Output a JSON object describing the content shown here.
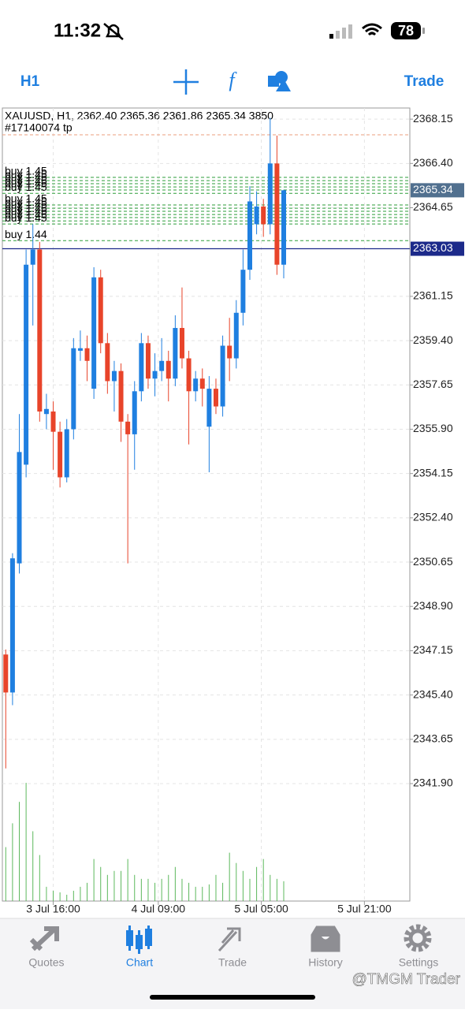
{
  "status": {
    "time": "11:32",
    "battery": "78"
  },
  "toolbar": {
    "timeframe": "H1",
    "trade": "Trade"
  },
  "chart_data": {
    "type": "candlestick",
    "header": "XAUUSD, H1, 2362.40 2365.36 2361.86 2365.34 3850",
    "open": [
      2347.0,
      2345.5,
      2350.6,
      2354.5,
      2362.4,
      2363.0,
      2356.5,
      2356.6,
      2355.8,
      2354.0,
      2355.9,
      2359.0,
      2359.1,
      2357.5,
      2361.9,
      2359.3,
      2357.8,
      2358.2,
      2356.2,
      2355.7,
      2357.4,
      2359.3,
      2357.9,
      2358.2,
      2358.6,
      2357.9,
      2359.9,
      2358.7,
      2357.4,
      2357.9,
      2356.0,
      2357.5,
      2356.8,
      2359.2,
      2358.7,
      2360.5,
      2362.2,
      2364.0,
      2364.7,
      2364.0,
      2366.4,
      2362.4
    ],
    "high": [
      2347.2,
      2351.0,
      2356.5,
      2363.0,
      2364.0,
      2363.3,
      2357.3,
      2357.0,
      2356.2,
      2356.3,
      2359.5,
      2359.8,
      2359.6,
      2362.3,
      2362.2,
      2359.7,
      2358.6,
      2358.5,
      2356.5,
      2357.8,
      2359.7,
      2359.6,
      2358.9,
      2359.5,
      2359.0,
      2360.4,
      2361.5,
      2359.0,
      2358.2,
      2358.3,
      2358.0,
      2357.9,
      2359.6,
      2360.3,
      2361.0,
      2363.0,
      2365.5,
      2365.3,
      2365.0,
      2368.2,
      2367.5,
      2365.36
    ],
    "low": [
      2342.5,
      2345.0,
      2350.2,
      2354.0,
      2360.0,
      2356.2,
      2355.9,
      2354.3,
      2353.6,
      2353.8,
      2355.5,
      2358.6,
      2357.8,
      2357.1,
      2358.9,
      2357.3,
      2356.6,
      2355.4,
      2350.6,
      2354.3,
      2357.0,
      2357.5,
      2357.2,
      2357.8,
      2357.0,
      2357.6,
      2358.3,
      2355.3,
      2357.0,
      2356.8,
      2354.2,
      2356.5,
      2356.4,
      2357.8,
      2358.3,
      2360.0,
      2361.8,
      2363.6,
      2363.5,
      2363.6,
      2362.0,
      2361.86
    ],
    "close": [
      2345.5,
      2350.8,
      2355.0,
      2362.4,
      2363.0,
      2356.6,
      2356.7,
      2355.8,
      2354.0,
      2355.9,
      2359.1,
      2359.1,
      2358.6,
      2361.9,
      2359.3,
      2357.8,
      2358.2,
      2356.2,
      2355.7,
      2357.4,
      2359.3,
      2357.9,
      2358.2,
      2358.6,
      2357.9,
      2359.9,
      2358.7,
      2357.4,
      2357.9,
      2357.5,
      2357.5,
      2356.8,
      2359.2,
      2358.7,
      2360.5,
      2362.2,
      2364.9,
      2364.7,
      2364.0,
      2366.4,
      2362.4,
      2365.34
    ],
    "volumes": [
      10470,
      15090,
      19250,
      22950,
      13550,
      8930,
      2770,
      2000,
      1690,
      1230,
      2000,
      2770,
      3540,
      8160,
      6620,
      5080,
      5850,
      5850,
      8160,
      5080,
      4310,
      4310,
      3540,
      4310,
      5080,
      6620,
      4310,
      3540,
      2770,
      2770,
      3230,
      5080,
      3540,
      9390,
      7390,
      5850,
      4310,
      6620,
      8160,
      5080,
      4310,
      3850
    ],
    "up_color": "#1f7fe0",
    "down_color": "#e8442a",
    "volume_color": "#5cb85c",
    "xlim": [
      -0.5,
      59.6
    ],
    "ylim": [
      2337.26,
      2368.59
    ],
    "xticks": [
      {
        "value": 7,
        "label": "3 Jul 16:00"
      },
      {
        "value": 22.5,
        "label": "4 Jul 09:00"
      },
      {
        "value": 37.7,
        "label": "5 Jul 05:00"
      },
      {
        "value": 52.9,
        "label": "5 Jul 21:00"
      }
    ],
    "yticks": [
      2368.15,
      {
        "value": 2366.4,
        "label": "2366.40"
      },
      2364.65,
      2361.15,
      {
        "value": 2359.4,
        "label": "2359.40"
      },
      2357.65,
      {
        "value": 2355.9,
        "label": "2355.90"
      },
      2354.15,
      {
        "value": 2352.4,
        "label": "2352.40"
      },
      2350.65,
      {
        "value": 2348.9,
        "label": "2348.90"
      },
      2347.15,
      {
        "value": 2345.4,
        "label": "2345.40"
      },
      2343.65,
      {
        "value": 2341.9,
        "label": "2341.90"
      }
    ],
    "grid": true,
    "tp": {
      "label": "#17140074 tp",
      "value": 2367.53,
      "color": "#eb9f7c"
    },
    "orders": [
      {
        "label": "buy 1.45",
        "value": 2365.85
      },
      {
        "label": "buy 1.45",
        "value": 2365.72
      },
      {
        "label": "buy 1.45",
        "value": 2365.6
      },
      {
        "label": "buy 1.45",
        "value": 2365.47
      },
      {
        "label": "buy 1.45",
        "value": 2365.35
      },
      {
        "label": "buy 1.45",
        "value": 2365.22
      },
      {
        "label": "buy 1.45",
        "value": 2364.76
      },
      {
        "label": "buy 1.45",
        "value": 2364.63
      },
      {
        "label": "buy 1.45",
        "value": 2364.51
      },
      {
        "label": "buy 1.45",
        "value": 2364.38
      },
      {
        "label": "buy 1.45",
        "value": 2364.26
      },
      {
        "label": "buy 1.45",
        "value": 2364.13
      },
      {
        "label": "buy 1.45",
        "value": 2364.01
      },
      {
        "label": "buy 1.44",
        "value": 2363.35
      }
    ],
    "order_color": "#2e9e3a",
    "bid": 2363.03,
    "bid_color": "#1c2a8a",
    "last_color": "#51708f"
  },
  "tabs": [
    "Quotes",
    "Chart",
    "Trade",
    "History",
    "Settings"
  ],
  "watermark": "@TMGM Trader"
}
